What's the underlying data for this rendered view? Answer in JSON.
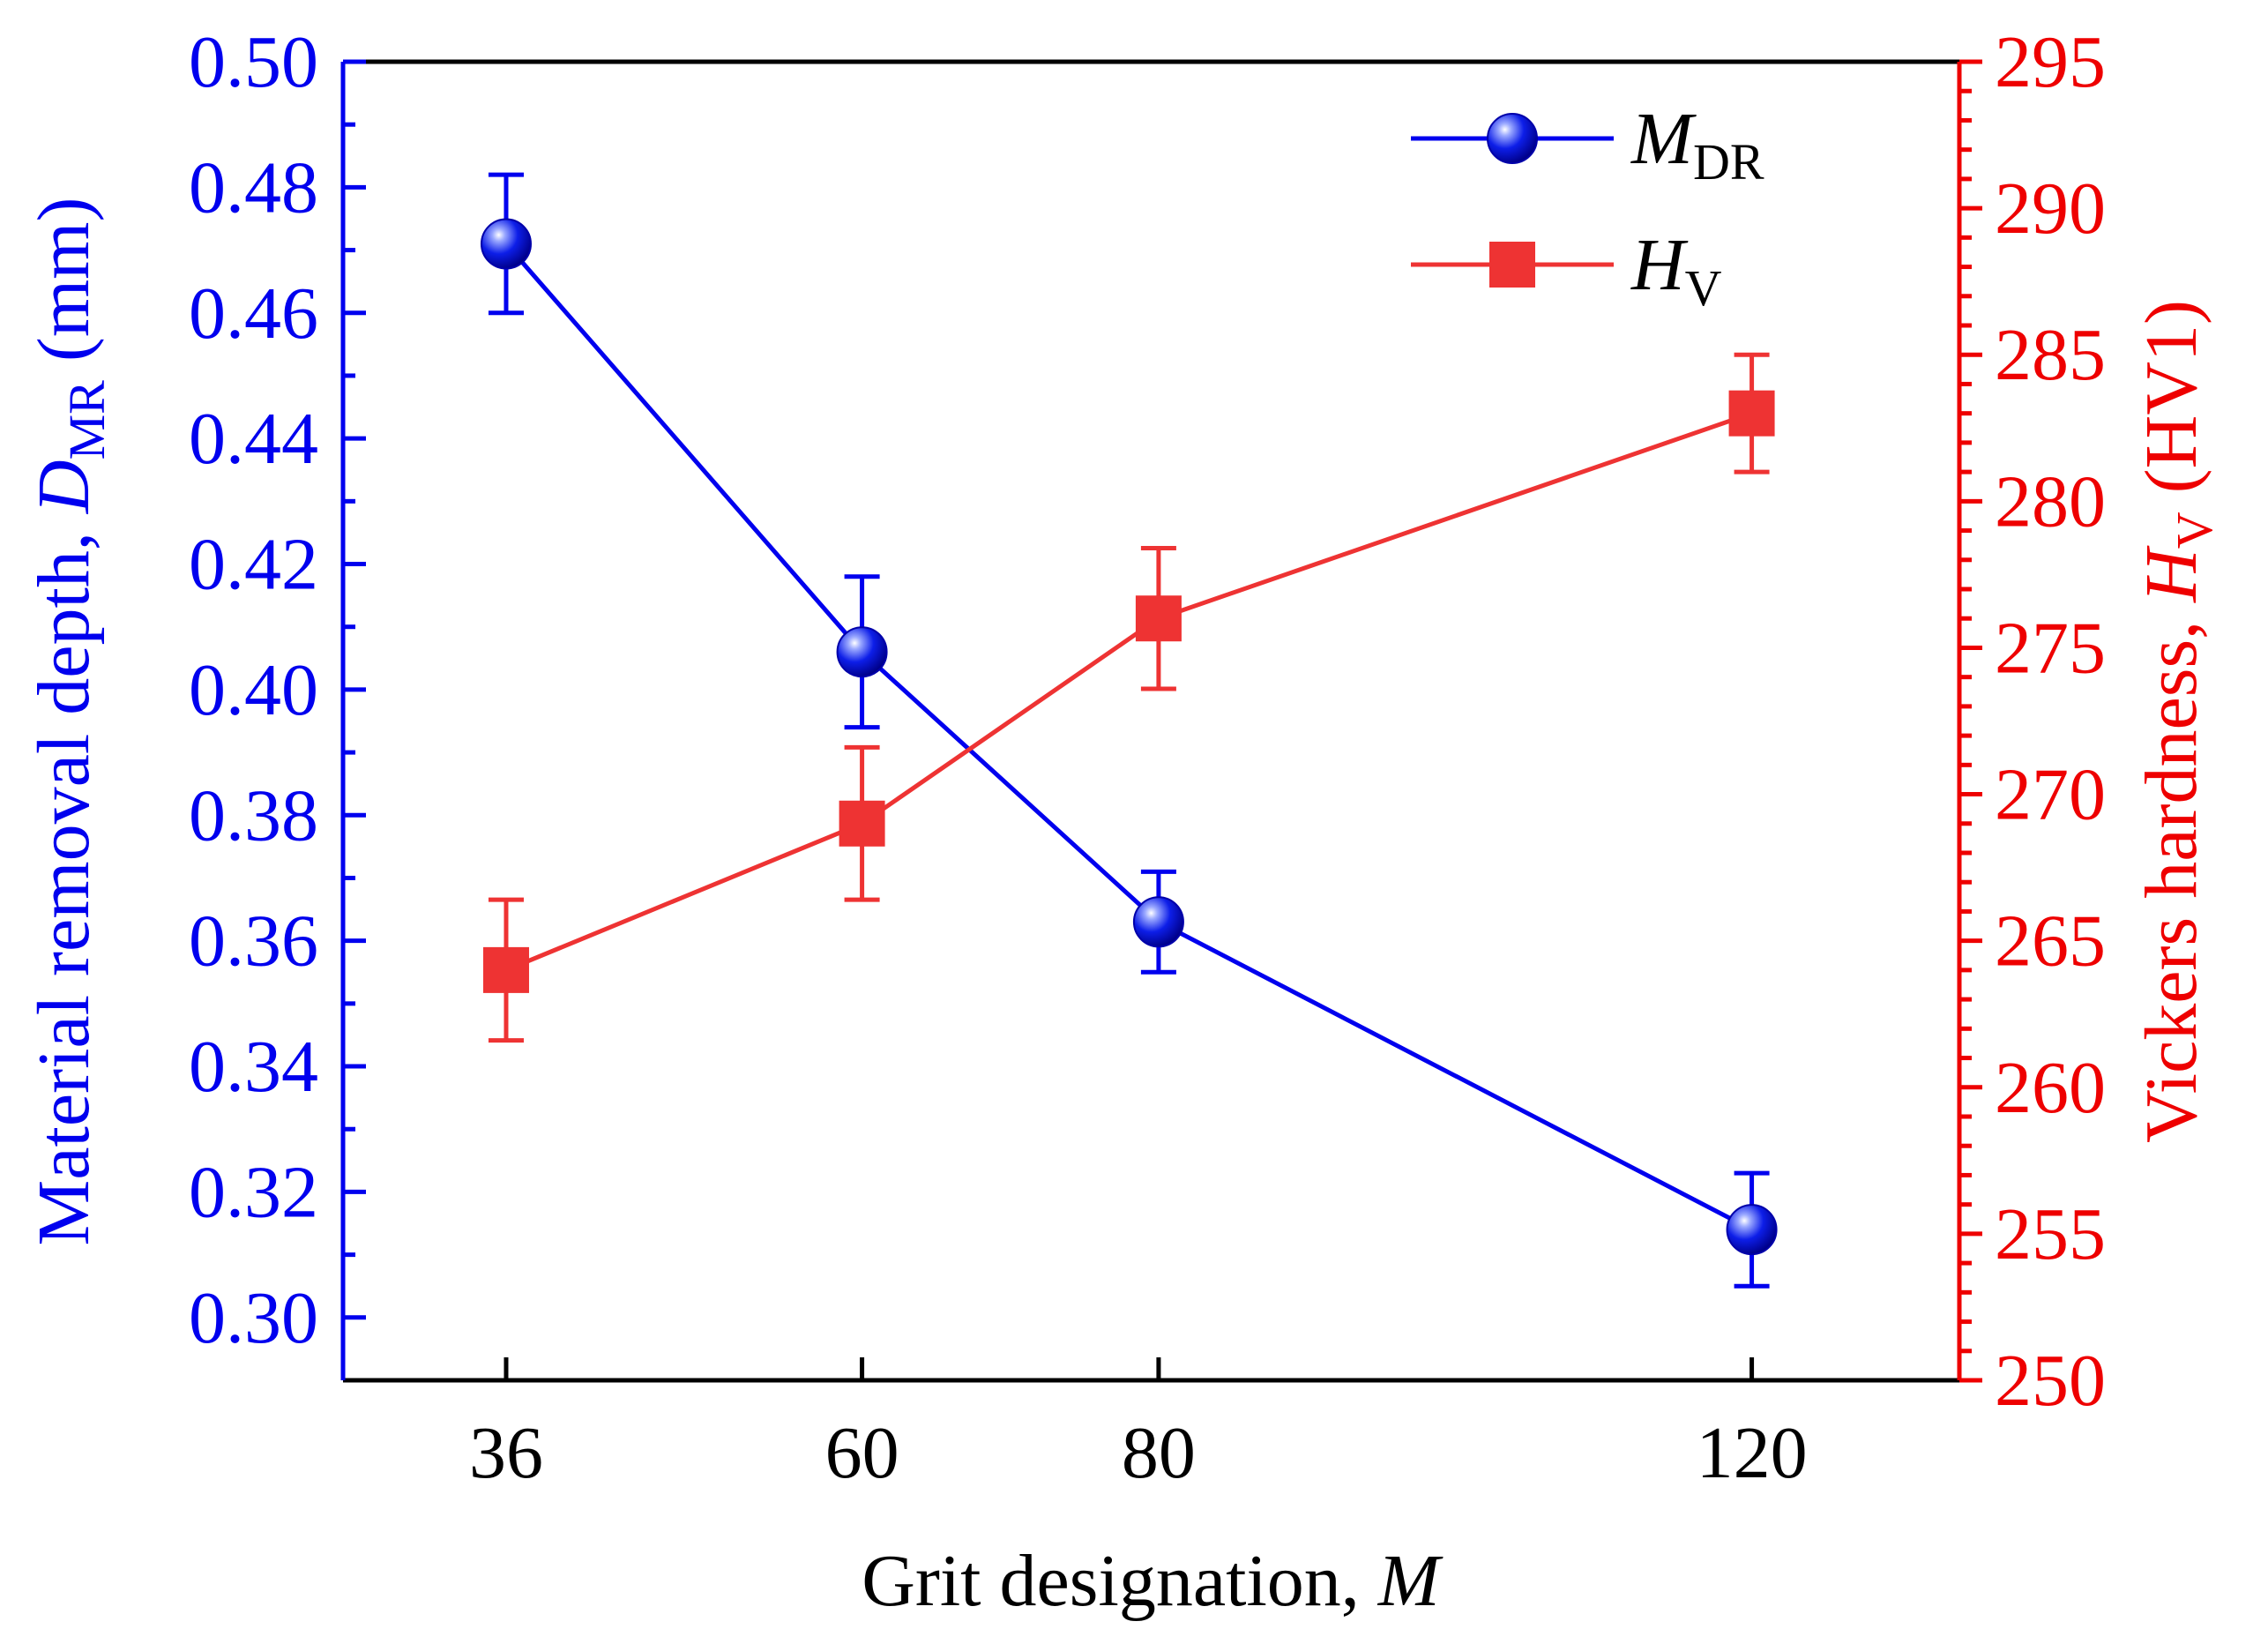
{
  "chart_data": {
    "type": "line",
    "x_title": {
      "text": "Grit designation, ",
      "var": "M"
    },
    "y_left_title": {
      "text": "Material removal depth, ",
      "var": "D",
      "sub": "MR",
      "unit": " (mm)"
    },
    "y_right_title": {
      "text": "Vickers hardness, ",
      "var": "H",
      "sub": "V",
      "unit": " (HV1)"
    },
    "x_categories": [
      "36",
      "60",
      "80",
      "120"
    ],
    "x_values": [
      36,
      60,
      80,
      120
    ],
    "x_range": [
      25,
      134
    ],
    "y_left_range": [
      0.29,
      0.5
    ],
    "y_left_ticks": [
      "0.30",
      "0.32",
      "0.34",
      "0.36",
      "0.38",
      "0.40",
      "0.42",
      "0.44",
      "0.46",
      "0.48",
      "0.50"
    ],
    "y_right_range": [
      250,
      295
    ],
    "y_right_ticks": [
      "250",
      "255",
      "260",
      "265",
      "270",
      "275",
      "280",
      "285",
      "290",
      "295"
    ],
    "series": [
      {
        "name": "M",
        "name_sub": "DR",
        "axis": "left",
        "color": "#0000ee",
        "marker": "circle",
        "values": [
          0.471,
          0.406,
          0.363,
          0.314
        ],
        "err_low": [
          0.46,
          0.394,
          0.355,
          0.305
        ],
        "err_high": [
          0.482,
          0.418,
          0.371,
          0.323
        ]
      },
      {
        "name": "H",
        "name_sub": "V",
        "axis": "right",
        "color": "#ee3333",
        "marker": "square",
        "values": [
          264.0,
          269.0,
          276.0,
          283.0
        ],
        "err_low": [
          261.6,
          266.4,
          273.6,
          281.0
        ],
        "err_high": [
          266.4,
          271.6,
          278.4,
          285.0
        ]
      }
    ],
    "legend_position": "top-right",
    "colors": {
      "left_axis": "#0000ee",
      "right_axis": "#ee0000",
      "frame": "#000000"
    }
  }
}
